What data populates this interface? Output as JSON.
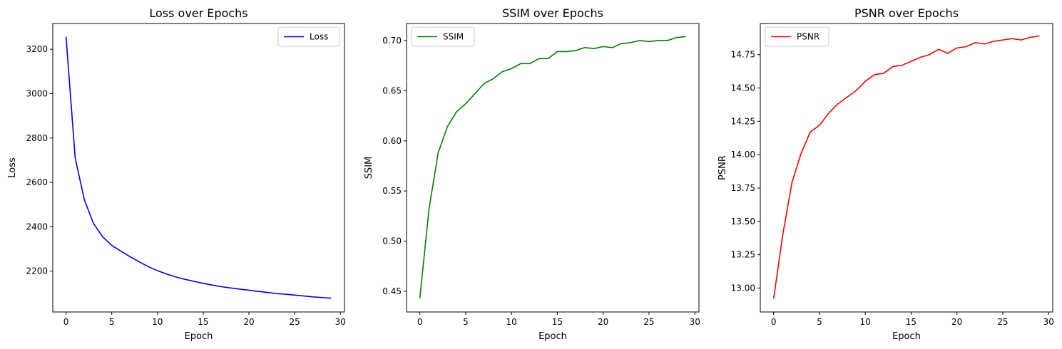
{
  "chart_data": [
    {
      "type": "line",
      "title": "Loss over Epochs",
      "xlabel": "Epoch",
      "ylabel": "Loss",
      "xlim": [
        -1.45,
        30.45
      ],
      "ylim": [
        2016,
        3316
      ],
      "xticks": [
        0,
        5,
        10,
        15,
        20,
        25,
        30
      ],
      "yticks": [
        2200,
        2400,
        2600,
        2800,
        3000,
        3200
      ],
      "xtick_labels": [
        "0",
        "5",
        "10",
        "15",
        "20",
        "25",
        "30"
      ],
      "ytick_labels": [
        "2200",
        "2400",
        "2600",
        "2800",
        "3000",
        "3200"
      ],
      "legend_position": "top-right",
      "grid": false,
      "x": [
        0,
        1,
        2,
        3,
        4,
        5,
        6,
        7,
        8,
        9,
        10,
        11,
        12,
        13,
        14,
        15,
        16,
        17,
        18,
        19,
        20,
        21,
        22,
        23,
        24,
        25,
        26,
        27,
        28,
        29
      ],
      "series": [
        {
          "name": "Loss",
          "color": "#0000ff",
          "values": [
            3257,
            2710,
            2522,
            2415,
            2355,
            2316,
            2290,
            2265,
            2242,
            2220,
            2202,
            2187,
            2174,
            2163,
            2154,
            2145,
            2137,
            2130,
            2124,
            2119,
            2114,
            2109,
            2104,
            2099,
            2096,
            2092,
            2088,
            2084,
            2081,
            2078
          ]
        }
      ]
    },
    {
      "type": "line",
      "title": "SSIM over Epochs",
      "xlabel": "Epoch",
      "ylabel": "SSIM",
      "xlim": [
        -1.45,
        30.45
      ],
      "ylim": [
        0.4294,
        0.717
      ],
      "xticks": [
        0,
        5,
        10,
        15,
        20,
        25,
        30
      ],
      "yticks": [
        0.45,
        0.5,
        0.55,
        0.6,
        0.65,
        0.7
      ],
      "xtick_labels": [
        "0",
        "5",
        "10",
        "15",
        "20",
        "25",
        "30"
      ],
      "ytick_labels": [
        "0.45",
        "0.50",
        "0.55",
        "0.60",
        "0.65",
        "0.70"
      ],
      "legend_position": "top-left",
      "grid": false,
      "x": [
        0,
        1,
        2,
        3,
        4,
        5,
        6,
        7,
        8,
        9,
        10,
        11,
        12,
        13,
        14,
        15,
        16,
        17,
        18,
        19,
        20,
        21,
        22,
        23,
        24,
        25,
        26,
        27,
        28,
        29
      ],
      "series": [
        {
          "name": "SSIM",
          "color": "#008000",
          "values": [
            0.443,
            0.532,
            0.588,
            0.614,
            0.629,
            0.637,
            0.647,
            0.657,
            0.662,
            0.669,
            0.672,
            0.677,
            0.677,
            0.682,
            0.682,
            0.689,
            0.689,
            0.69,
            0.693,
            0.692,
            0.694,
            0.693,
            0.697,
            0.698,
            0.7,
            0.699,
            0.7,
            0.7,
            0.703,
            0.704
          ]
        }
      ]
    },
    {
      "type": "line",
      "title": "PSNR over Epochs",
      "xlabel": "Epoch",
      "ylabel": "PSNR",
      "xlim": [
        -1.45,
        30.45
      ],
      "ylim": [
        12.8205,
        14.9835
      ],
      "xticks": [
        0,
        5,
        10,
        15,
        20,
        25,
        30
      ],
      "yticks": [
        13.0,
        13.25,
        13.5,
        13.75,
        14.0,
        14.25,
        14.5,
        14.75
      ],
      "xtick_labels": [
        "0",
        "5",
        "10",
        "15",
        "20",
        "25",
        "30"
      ],
      "ytick_labels": [
        "13.00",
        "13.25",
        "13.50",
        "13.75",
        "14.00",
        "14.25",
        "14.50",
        "14.75"
      ],
      "legend_position": "top-left",
      "grid": false,
      "x": [
        0,
        1,
        2,
        3,
        4,
        5,
        6,
        7,
        8,
        9,
        10,
        11,
        12,
        13,
        14,
        15,
        16,
        17,
        18,
        19,
        20,
        21,
        22,
        23,
        24,
        25,
        26,
        27,
        28,
        29
      ],
      "series": [
        {
          "name": "PSNR",
          "color": "#ff0000",
          "values": [
            12.92,
            13.4,
            13.79,
            14.01,
            14.17,
            14.22,
            14.31,
            14.38,
            14.43,
            14.48,
            14.55,
            14.6,
            14.61,
            14.66,
            14.67,
            14.7,
            14.73,
            14.75,
            14.79,
            14.76,
            14.8,
            14.81,
            14.84,
            14.83,
            14.85,
            14.86,
            14.87,
            14.86,
            14.88,
            14.89
          ]
        }
      ]
    }
  ]
}
